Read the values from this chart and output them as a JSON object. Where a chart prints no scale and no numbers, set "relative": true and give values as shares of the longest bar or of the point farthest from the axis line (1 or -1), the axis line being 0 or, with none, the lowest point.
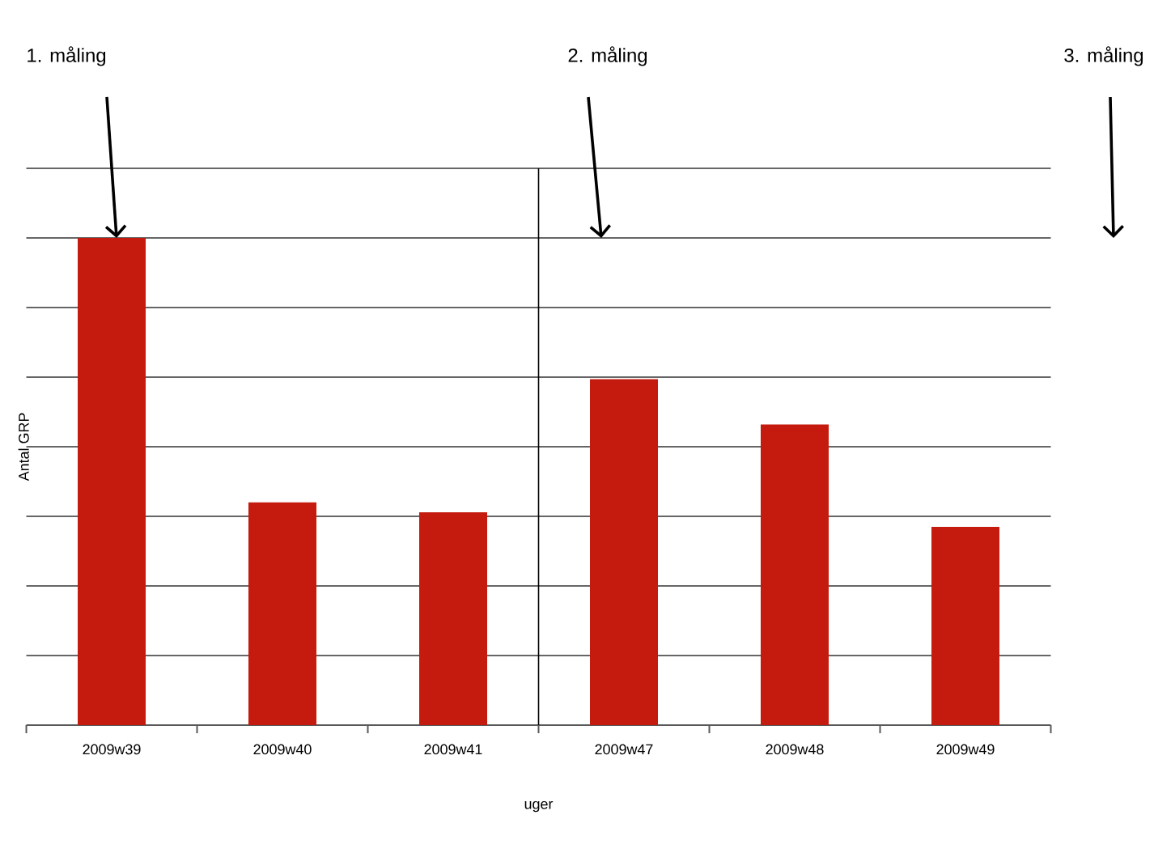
{
  "chart_data": {
    "type": "bar",
    "relative": true,
    "ylabel": "Antal GRP",
    "xlabel": "uger",
    "categories": [
      "2009w39",
      "2009w40",
      "2009w41",
      "2009w47",
      "2009w48",
      "2009w49"
    ],
    "values": [
      1,
      0.457,
      0.437,
      0.71,
      0.617,
      0.407
    ],
    "color": "#c41b0e",
    "grid": "y",
    "annotations": [
      "1. måling",
      "2. måling",
      "3. måling"
    ]
  }
}
